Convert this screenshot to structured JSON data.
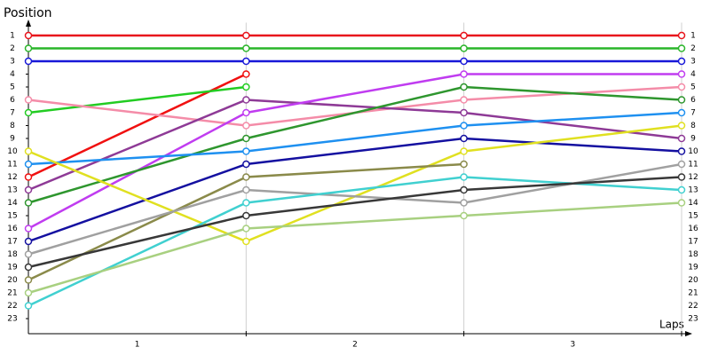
{
  "chart_data": {
    "type": "line",
    "y_label": "Position",
    "x_label": "Laps",
    "lap_labels": [
      "1",
      "2",
      "3"
    ],
    "x": [
      0,
      1,
      2,
      3
    ],
    "xlim": [
      0,
      3
    ],
    "ylim": [
      0,
      24
    ],
    "y_inverted": true,
    "yticks": [
      1,
      2,
      3,
      4,
      5,
      6,
      7,
      8,
      9,
      10,
      11,
      12,
      13,
      14,
      15,
      16,
      17,
      18,
      19,
      20,
      21,
      22,
      23
    ],
    "series": [
      {
        "color": "#e8141c",
        "values": [
          1,
          1,
          1,
          1
        ]
      },
      {
        "color": "#2ab52a",
        "values": [
          2,
          2,
          2,
          2
        ]
      },
      {
        "color": "#1818d8",
        "values": [
          3,
          3,
          3,
          3
        ]
      },
      {
        "color": "#f01010",
        "values": [
          12,
          4,
          null,
          null
        ]
      },
      {
        "color": "#22cc22",
        "values": [
          7,
          5,
          null,
          null
        ]
      },
      {
        "color": "#f48ca8",
        "values": [
          6,
          8,
          6,
          5
        ]
      },
      {
        "color": "#8e3a96",
        "values": [
          13,
          6,
          7,
          9
        ]
      },
      {
        "color": "#c03cf0",
        "values": [
          16,
          7,
          4,
          4
        ]
      },
      {
        "color": "#2e962e",
        "values": [
          14,
          9,
          5,
          6
        ]
      },
      {
        "color": "#1e90f0",
        "values": [
          11,
          10,
          8,
          7
        ]
      },
      {
        "color": "#1410a0",
        "values": [
          17,
          11,
          9,
          10
        ]
      },
      {
        "color": "#e0e020",
        "values": [
          10,
          17,
          10,
          8
        ]
      },
      {
        "color": "#8a8a4a",
        "values": [
          20,
          12,
          11,
          null
        ]
      },
      {
        "color": "#a0a0a0",
        "values": [
          18,
          13,
          14,
          11
        ]
      },
      {
        "color": "#40d0d0",
        "values": [
          22,
          14,
          12,
          13
        ]
      },
      {
        "color": "#383838",
        "values": [
          19,
          15,
          13,
          12
        ]
      },
      {
        "color": "#a8d080",
        "values": [
          21,
          16,
          15,
          14
        ]
      }
    ]
  }
}
